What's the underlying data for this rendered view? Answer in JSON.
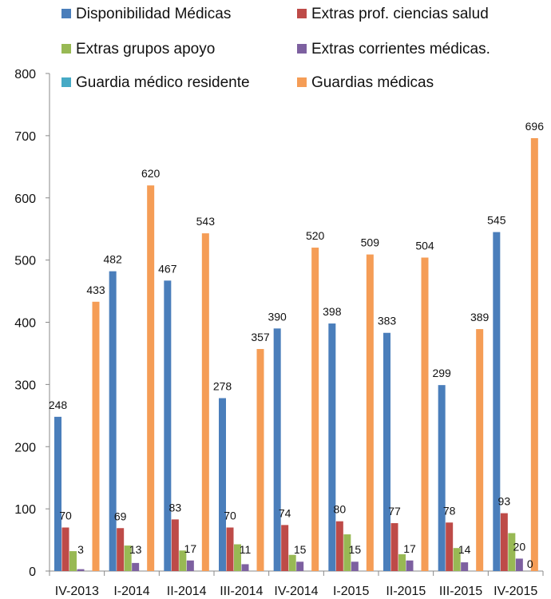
{
  "chart_data": {
    "type": "bar",
    "categories": [
      "IV-2013",
      "I-2014",
      "II-2014",
      "III-2014",
      "IV-2014",
      "I-2015",
      "II-2015",
      "III-2015",
      "IV-2015"
    ],
    "series": [
      {
        "name": "Disponibilidad  Médicas",
        "color": "#4A7EBB",
        "values": [
          248,
          482,
          467,
          278,
          390,
          398,
          383,
          299,
          545
        ],
        "labels": [
          "248",
          "482",
          "467",
          "278",
          "390",
          "398",
          "383",
          "299",
          "545"
        ]
      },
      {
        "name": "Extras prof. ciencias salud",
        "color": "#BE4B48",
        "values": [
          70,
          69,
          83,
          70,
          74,
          80,
          77,
          78,
          93
        ],
        "labels": [
          "70",
          "69",
          "83",
          "70",
          "74",
          "80",
          "77",
          "78",
          "93"
        ]
      },
      {
        "name": "Extras grupos apoyo",
        "color": "#98B954",
        "values": [
          32,
          41,
          33,
          43,
          26,
          59,
          27,
          37,
          61
        ],
        "labels": []
      },
      {
        "name": "Extras corrientes médicas.",
        "color": "#7D60A0",
        "values": [
          3,
          13,
          17,
          11,
          15,
          15,
          17,
          14,
          20
        ],
        "labels": [
          "3",
          "13",
          "17",
          "11",
          "15",
          "15",
          "17",
          "14",
          "20"
        ]
      },
      {
        "name": "Guardia médico residente",
        "color": "#46AAC5",
        "values": [
          0,
          0,
          0,
          0,
          0,
          0,
          0,
          0,
          0
        ],
        "labels": [
          "",
          "",
          "",
          "",
          "",
          "",
          "",
          "",
          "0"
        ]
      },
      {
        "name": "Guardias médicas",
        "color": "#F59D56",
        "values": [
          433,
          620,
          543,
          357,
          520,
          509,
          504,
          389,
          696
        ],
        "labels": [
          "433",
          "620",
          "543",
          "357",
          "520",
          "509",
          "504",
          "389",
          "696"
        ]
      }
    ],
    "yticks": [
      "0",
      "100",
      "200",
      "300",
      "400",
      "500",
      "600",
      "700",
      "800"
    ],
    "ylim": [
      0,
      800
    ],
    "grid": false,
    "legend_position": "top"
  }
}
